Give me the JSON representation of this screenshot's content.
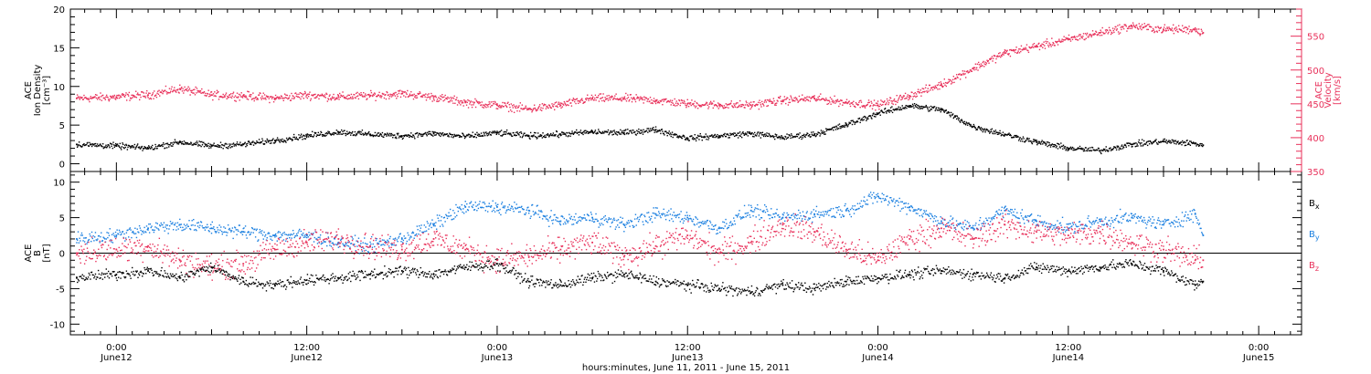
{
  "colors": {
    "black": "#000000",
    "pink": "#e8305a",
    "blue": "#1a7fe0"
  },
  "figure": {
    "xlabel": "hours:minutes, June 11, 2011 - June 15, 2011",
    "xticks": [
      {
        "time": "0:00",
        "date": "June12",
        "t": 0
      },
      {
        "time": "12:00",
        "date": "June12",
        "t": 12
      },
      {
        "time": "0:00",
        "date": "June13",
        "t": 24
      },
      {
        "time": "12:00",
        "date": "June13",
        "t": 36
      },
      {
        "time": "0:00",
        "date": "June14",
        "t": 48
      },
      {
        "time": "12:00",
        "date": "June14",
        "t": 60
      },
      {
        "time": "0:00",
        "date": "June15",
        "t": 72
      }
    ],
    "xlim": [
      -2.9,
      74.7
    ]
  },
  "chart_data": [
    {
      "type": "scatter",
      "panel": "plasma",
      "ylabel_left": [
        "ACE",
        "Ion Density",
        "[cm⁻³]"
      ],
      "ylabel_right": [
        "ACE",
        "Velocity",
        "[km/s]"
      ],
      "ylim_left": [
        -1,
        20
      ],
      "yticks_left": [
        "0",
        "5",
        "10",
        "15",
        "20"
      ],
      "ylim_right": [
        350,
        590
      ],
      "yticks_right": [
        "350",
        "400",
        "450",
        "500",
        "550"
      ],
      "series": [
        {
          "axis": "left",
          "color": "black",
          "x": [
            -2.5,
            0,
            2,
            4,
            6,
            8,
            10,
            12,
            14,
            16,
            18,
            20,
            22,
            24,
            26,
            28,
            30,
            32,
            34,
            36,
            38,
            40,
            42,
            44,
            46,
            48,
            50,
            52,
            54,
            56,
            58,
            60,
            62,
            64,
            66,
            68,
            68.5
          ],
          "y": [
            2.5,
            2.3,
            2.0,
            2.8,
            2.3,
            2.5,
            3.0,
            3.6,
            4.1,
            3.8,
            3.6,
            3.9,
            3.5,
            4.0,
            3.6,
            3.8,
            4.1,
            4.0,
            4.4,
            3.3,
            3.6,
            3.9,
            3.4,
            3.8,
            5.0,
            6.5,
            7.5,
            7.0,
            4.8,
            3.8,
            2.8,
            2.0,
            1.7,
            2.5,
            2.9,
            2.6,
            2.4
          ]
        },
        {
          "axis": "right",
          "color": "pink",
          "x": [
            -2.5,
            0,
            2,
            4,
            6,
            8,
            10,
            12,
            14,
            16,
            18,
            20,
            22,
            24,
            26,
            28,
            30,
            32,
            34,
            36,
            38,
            40,
            42,
            44,
            46,
            48,
            50,
            52,
            54,
            56,
            58,
            60,
            62,
            64,
            66,
            68,
            68.5
          ],
          "y": [
            458,
            460,
            463,
            472,
            463,
            462,
            458,
            463,
            460,
            462,
            465,
            460,
            452,
            448,
            442,
            448,
            458,
            458,
            455,
            450,
            448,
            448,
            455,
            458,
            452,
            448,
            462,
            478,
            502,
            525,
            535,
            545,
            555,
            565,
            560,
            560,
            555
          ]
        }
      ]
    },
    {
      "type": "scatter",
      "panel": "magnetic-field",
      "ylabel_left": [
        "ACE",
        "B",
        "[nT]"
      ],
      "ylim": [
        -11.5,
        11.5
      ],
      "yticks": [
        "-10",
        "-5",
        "0",
        "5",
        "10"
      ],
      "zero_line": true,
      "legend": [
        {
          "label": "B",
          "sub": "x",
          "color": "black"
        },
        {
          "label": "B",
          "sub": "y",
          "color": "blue"
        },
        {
          "label": "B",
          "sub": "z",
          "color": "pink"
        }
      ],
      "series": [
        {
          "color": "black",
          "x": [
            -2.5,
            0,
            2,
            4,
            6,
            8,
            10,
            12,
            14,
            16,
            18,
            20,
            22,
            24,
            26,
            28,
            30,
            32,
            34,
            36,
            38,
            40,
            42,
            44,
            46,
            48,
            50,
            52,
            54,
            56,
            58,
            60,
            62,
            64,
            66,
            68,
            68.5
          ],
          "y": [
            -3.5,
            -3.0,
            -2.5,
            -3.5,
            -2.0,
            -4.0,
            -4.5,
            -3.8,
            -3.5,
            -3.0,
            -2.5,
            -3.0,
            -2.0,
            -1.5,
            -4.0,
            -4.5,
            -3.5,
            -3.0,
            -4.0,
            -4.5,
            -5.0,
            -5.5,
            -4.5,
            -5.0,
            -4.0,
            -3.5,
            -3.0,
            -2.5,
            -3.0,
            -3.5,
            -2.0,
            -2.5,
            -2.0,
            -1.5,
            -2.5,
            -4.5,
            -4.0
          ]
        },
        {
          "color": "blue",
          "x": [
            -2.5,
            0,
            2,
            4,
            6,
            8,
            10,
            12,
            14,
            16,
            18,
            20,
            22,
            24,
            26,
            28,
            30,
            32,
            34,
            36,
            38,
            40,
            42,
            44,
            46,
            48,
            50,
            52,
            54,
            56,
            58,
            60,
            62,
            64,
            66,
            68,
            68.5
          ],
          "y": [
            2.0,
            2.5,
            3.5,
            4.0,
            3.5,
            3.0,
            2.5,
            2.5,
            1.5,
            1.0,
            2.0,
            4.0,
            6.5,
            6.5,
            6.0,
            4.5,
            5.0,
            4.0,
            5.5,
            5.0,
            3.5,
            6.0,
            5.0,
            5.5,
            6.0,
            8.0,
            6.5,
            4.5,
            3.5,
            6.0,
            4.5,
            3.5,
            4.5,
            5.0,
            4.0,
            5.5,
            2.5
          ]
        },
        {
          "color": "pink",
          "x": [
            -2.5,
            0,
            2,
            4,
            6,
            8,
            10,
            12,
            14,
            16,
            18,
            20,
            22,
            24,
            26,
            28,
            30,
            32,
            34,
            36,
            38,
            40,
            42,
            44,
            46,
            48,
            50,
            52,
            54,
            56,
            58,
            60,
            62,
            64,
            66,
            68,
            68.5
          ],
          "y": [
            0.0,
            0.5,
            1.0,
            -1.0,
            -2.0,
            -1.5,
            0.5,
            1.5,
            2.0,
            1.0,
            0.5,
            2.0,
            0.5,
            -1.0,
            -0.5,
            0.5,
            1.5,
            -0.5,
            1.0,
            2.5,
            0.0,
            1.5,
            4.0,
            3.0,
            0.5,
            -1.0,
            2.0,
            3.5,
            2.0,
            4.0,
            3.0,
            2.5,
            3.0,
            1.5,
            0.5,
            -1.0,
            -1.0
          ]
        }
      ]
    }
  ]
}
